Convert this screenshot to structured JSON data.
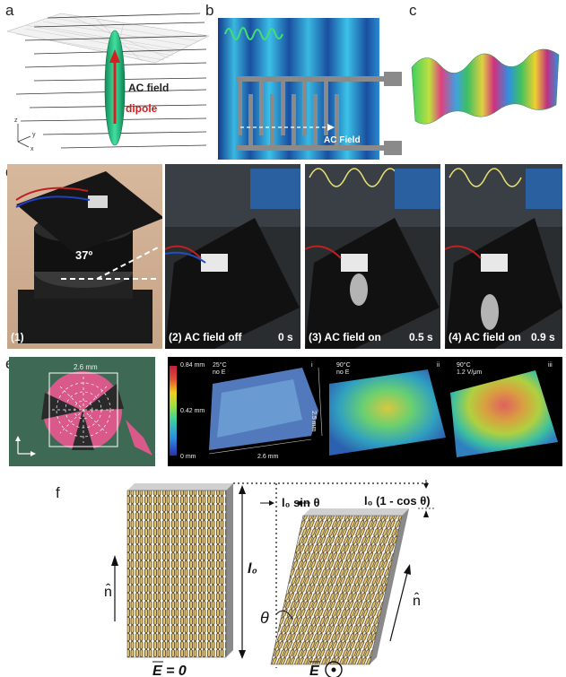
{
  "panels": {
    "a": {
      "label": "a",
      "ac_field": "AC field",
      "dipole": "dipole",
      "axis_z": "z",
      "axis_y": "y",
      "axis_x": "x"
    },
    "b": {
      "label": "b",
      "ac_field": "AC Field"
    },
    "c": {
      "label": "c"
    },
    "d": {
      "label": "d",
      "angle": "37º",
      "captions": [
        {
          "text": "(1)"
        },
        {
          "text": "(2) AC field off",
          "time": "0 s"
        },
        {
          "text": "(3) AC field on",
          "time": "0.5 s"
        },
        {
          "text": "(4) AC field on",
          "time": "0.9 s"
        }
      ]
    },
    "e": {
      "label": "e",
      "scale_len": "2.6 mm",
      "colorbar": {
        "top": "0.84 mm",
        "mid": "0.42 mm",
        "bottom": "0 mm"
      },
      "maps": [
        {
          "roman": "i",
          "line1": "25°C",
          "line2": "no E",
          "dim_x": "2.6 mm",
          "dim_y": "2.5 mm"
        },
        {
          "roman": "ii",
          "line1": "90°C",
          "line2": "no E"
        },
        {
          "roman": "iii",
          "line1": "90°C",
          "line2": "1.2 V/μm"
        }
      ]
    },
    "f": {
      "label": "f",
      "l0": "l₀",
      "sin_label": "l₀ sin θ",
      "cos_label": "l₀ (1 - cos θ)",
      "theta": "θ",
      "n_hat": "n̂",
      "e_zero": "E = 0",
      "e_dot": "E"
    }
  },
  "colors": {
    "ellipsoid": "#2ecf8a",
    "dipole": "#d62020",
    "colormap": [
      "#2b2fb0",
      "#2c8fe0",
      "#3ecfa0",
      "#9be040",
      "#f0d020",
      "#e05030",
      "#c02040"
    ],
    "rod": "#e6c56a",
    "gray": "#888888"
  }
}
